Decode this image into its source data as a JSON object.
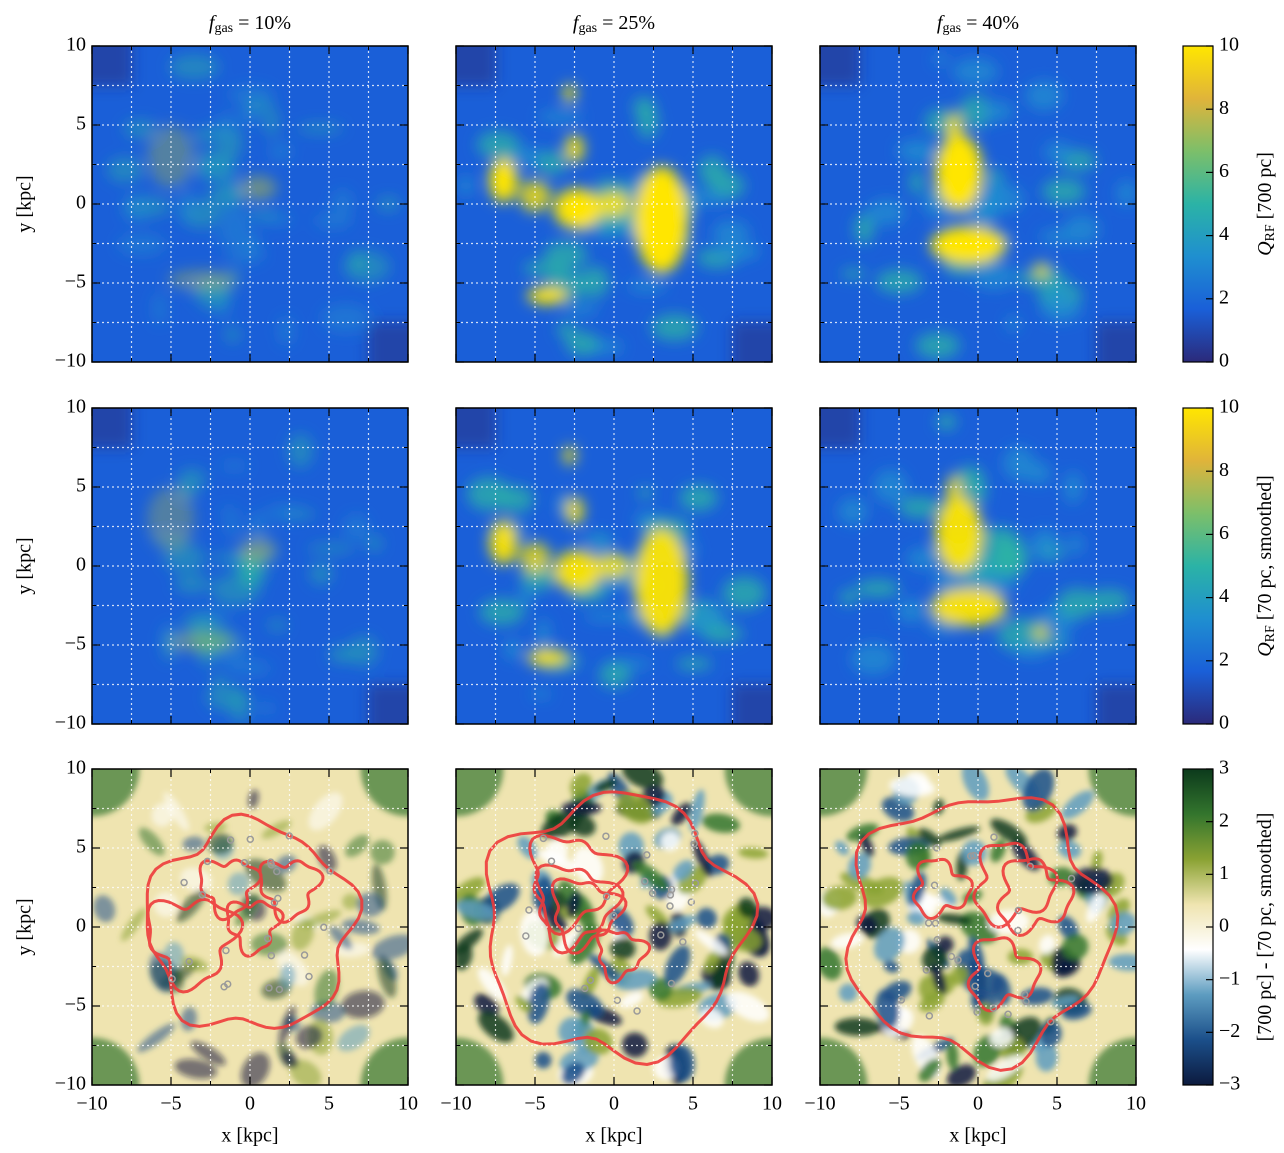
{
  "chart_data": {
    "type": "heatmap-grid",
    "titles": [
      {
        "symbol": "f",
        "subscript": "gas",
        "text": " = 10%"
      },
      {
        "symbol": "f",
        "subscript": "gas",
        "text": " = 25%"
      },
      {
        "symbol": "f",
        "subscript": "gas",
        "text": " = 40%"
      }
    ],
    "xlabel": "x [kpc]",
    "ylabel": "y [kpc]",
    "xlim": [
      -10,
      10
    ],
    "ylim": [
      -10,
      10
    ],
    "xticks": [
      {
        "value": -10,
        "label": "−10"
      },
      {
        "value": -5,
        "label": "−5"
      },
      0,
      5,
      10
    ],
    "yticks": [
      {
        "value": -10,
        "label": "−10"
      },
      {
        "value": -5,
        "label": "−5"
      },
      0,
      5,
      10
    ],
    "minor_ticks": [
      -7.5,
      -2.5,
      2.5,
      7.5
    ],
    "grid": true,
    "colorbars": [
      {
        "symbol": "Q",
        "subscript": "RF",
        "text": " [700 pc]",
        "lim": [
          0,
          10
        ],
        "ticks": [
          0,
          2,
          4,
          6,
          8,
          10
        ],
        "colors": [
          "#2b2a7a",
          "#1a5fd8",
          "#1f8fd0",
          "#2bb3a6",
          "#7cbf6a",
          "#e0b43a",
          "#ffe600"
        ]
      },
      {
        "symbol": "Q",
        "subscript": "RF",
        "text": " [70 pc, smoothed]",
        "lim": [
          0,
          10
        ],
        "ticks": [
          0,
          2,
          4,
          6,
          8,
          10
        ],
        "colors": [
          "#2b2a7a",
          "#1a5fd8",
          "#1f8fd0",
          "#2bb3a6",
          "#7cbf6a",
          "#e0b43a",
          "#ffe600"
        ]
      },
      {
        "text": "[700 pc] - [70 pc, smoothed]",
        "lim": [
          -3,
          3
        ],
        "ticks": [
          {
            "value": -3,
            "label": "−3"
          },
          {
            "value": -2,
            "label": "−2"
          },
          {
            "value": -1,
            "label": "−1"
          },
          0,
          1,
          2,
          3
        ],
        "colors": [
          "#0c1a3e",
          "#1b4f8a",
          "#5d9cc0",
          "#ffffff",
          "#efe4b0",
          "#8aa233",
          "#33752d",
          "#0c3a1c"
        ]
      }
    ]
  }
}
